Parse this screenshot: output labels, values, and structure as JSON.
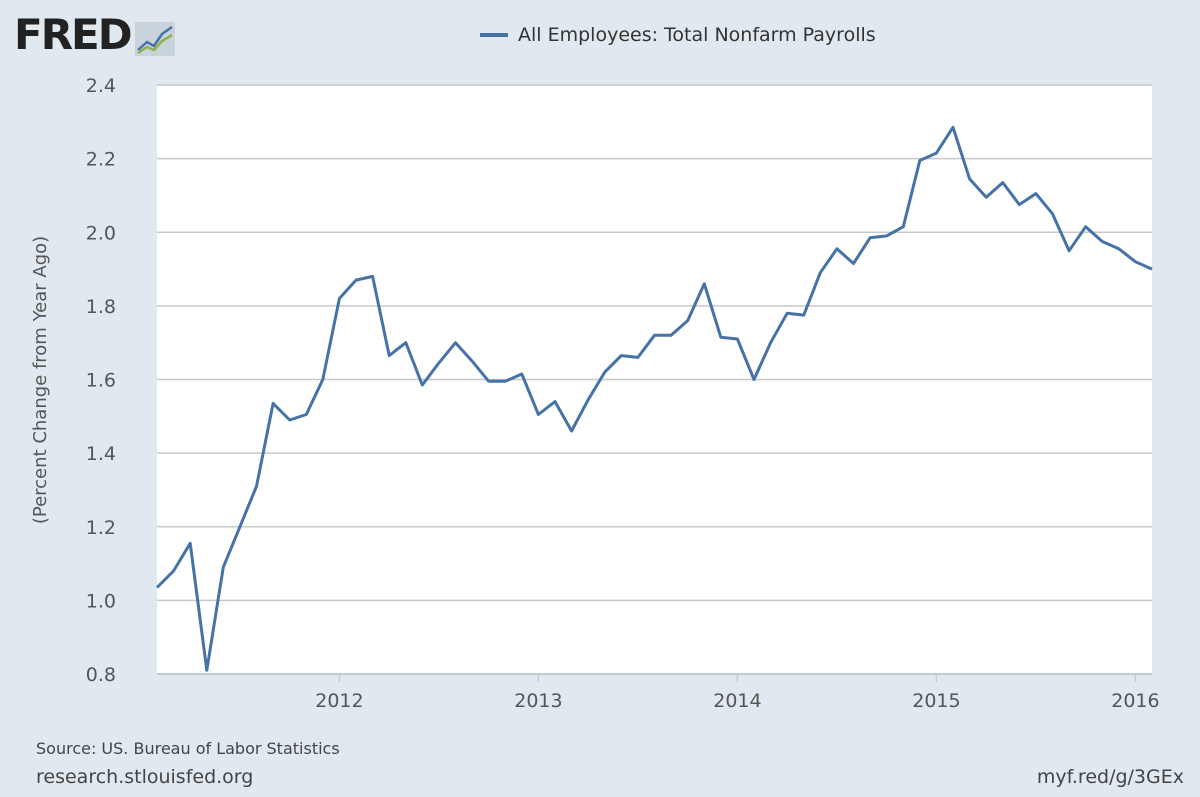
{
  "logo": {
    "text": "FRED"
  },
  "chart_data": {
    "type": "line",
    "title": "",
    "xlabel": "",
    "ylabel": "(Percent Change from Year Ago)",
    "ylim": [
      0.8,
      2.4
    ],
    "yticks": [
      "0.8",
      "1.0",
      "1.2",
      "1.4",
      "1.6",
      "1.8",
      "2.0",
      "2.2",
      "2.4"
    ],
    "xticks": [
      "2012",
      "2013",
      "2014",
      "2015",
      "2016"
    ],
    "xrange": [
      "2011-02",
      "2016-02"
    ],
    "grid": true,
    "legend_position": "top-center",
    "series": [
      {
        "name": "All Employees: Total Nonfarm Payrolls",
        "color": "#4572a7",
        "x": [
          "2011-02",
          "2011-03",
          "2011-04",
          "2011-05",
          "2011-06",
          "2011-07",
          "2011-08",
          "2011-09",
          "2011-10",
          "2011-11",
          "2011-12",
          "2012-01",
          "2012-02",
          "2012-03",
          "2012-04",
          "2012-05",
          "2012-06",
          "2012-07",
          "2012-08",
          "2012-09",
          "2012-10",
          "2012-11",
          "2012-12",
          "2013-01",
          "2013-02",
          "2013-03",
          "2013-04",
          "2013-05",
          "2013-06",
          "2013-07",
          "2013-08",
          "2013-09",
          "2013-10",
          "2013-11",
          "2013-12",
          "2014-01",
          "2014-02",
          "2014-03",
          "2014-04",
          "2014-05",
          "2014-06",
          "2014-07",
          "2014-08",
          "2014-09",
          "2014-10",
          "2014-11",
          "2014-12",
          "2015-01",
          "2015-02",
          "2015-03",
          "2015-04",
          "2015-05",
          "2015-06",
          "2015-07",
          "2015-08",
          "2015-09",
          "2015-10",
          "2015-11",
          "2015-12",
          "2016-01",
          "2016-02"
        ],
        "values": [
          1.035,
          1.08,
          1.155,
          0.81,
          1.09,
          1.2,
          1.31,
          1.535,
          1.49,
          1.505,
          1.6,
          1.82,
          1.87,
          1.88,
          1.665,
          1.7,
          1.585,
          1.645,
          1.7,
          1.65,
          1.595,
          1.595,
          1.615,
          1.505,
          1.54,
          1.46,
          1.545,
          1.62,
          1.665,
          1.66,
          1.72,
          1.72,
          1.76,
          1.86,
          1.715,
          1.71,
          1.6,
          1.7,
          1.78,
          1.775,
          1.89,
          1.955,
          1.915,
          1.985,
          1.99,
          2.015,
          2.195,
          2.215,
          2.285,
          2.145,
          2.095,
          2.135,
          2.075,
          2.105,
          2.05,
          1.95,
          2.015,
          1.975,
          1.955,
          1.92,
          1.9
        ]
      }
    ]
  },
  "footer": {
    "source": "Source: US. Bureau of Labor Statistics",
    "site": "research.stlouisfed.org",
    "short_link": "myf.red/g/3GEx"
  }
}
